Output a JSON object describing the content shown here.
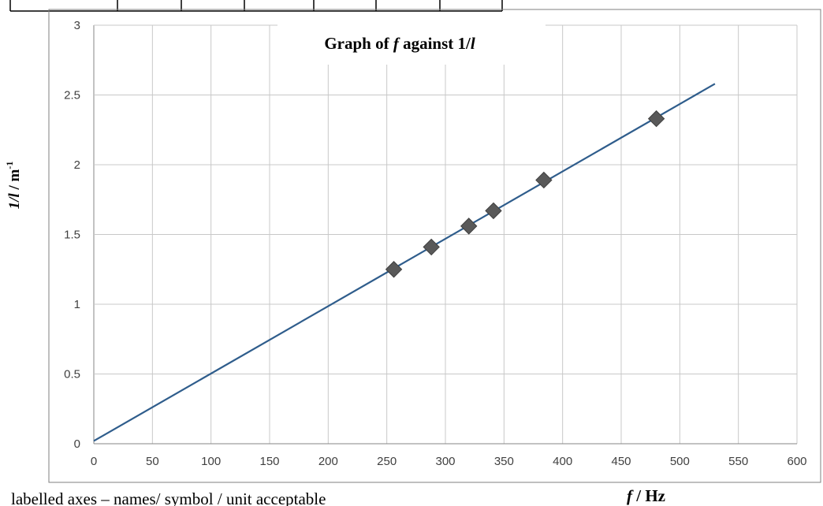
{
  "chart_data": {
    "type": "scatter",
    "title": {
      "prefix": "Graph of ",
      "italic_symbol": "f",
      "middle": " against 1/",
      "italic_suffix": "l"
    },
    "xlabel": {
      "symbol": "f",
      "unit": " / Hz"
    },
    "ylabel": {
      "symbol": "1/l",
      "unit": " / m",
      "exponent": "-1"
    },
    "xlim": [
      0,
      600
    ],
    "ylim": [
      0,
      3
    ],
    "xticks": [
      "0",
      "50",
      "100",
      "150",
      "200",
      "250",
      "300",
      "350",
      "400",
      "450",
      "500",
      "550",
      "600"
    ],
    "yticks": [
      "0",
      "0.5",
      "1",
      "1.5",
      "2",
      "2.5",
      "3"
    ],
    "grid": true,
    "points": [
      {
        "x": 256,
        "y": 1.25
      },
      {
        "x": 288,
        "y": 1.41
      },
      {
        "x": 320,
        "y": 1.56
      },
      {
        "x": 341,
        "y": 1.67
      },
      {
        "x": 384,
        "y": 1.89
      },
      {
        "x": 480,
        "y": 2.33
      }
    ],
    "trendline": {
      "x": [
        0,
        530
      ],
      "y": [
        0.02,
        2.58
      ]
    },
    "marker_color": "#595959",
    "line_color": "#2f5d8c"
  },
  "caption": "labelled axes – names/ symbol / unit  acceptable"
}
